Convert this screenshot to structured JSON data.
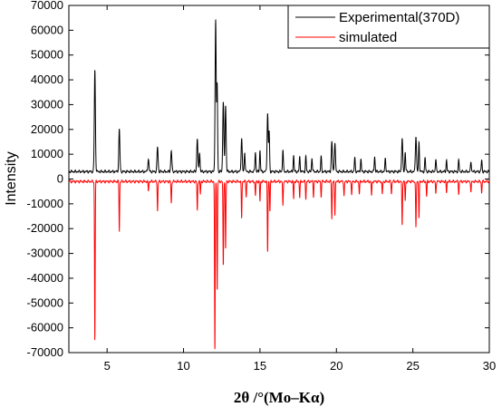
{
  "chart_data": {
    "type": "line",
    "xlabel": "2θ /°(Mo–Kα)",
    "ylabel": "Intensity",
    "xlim": [
      2.5,
      30
    ],
    "ylim": [
      -70000,
      70000
    ],
    "x_ticks": [
      5,
      10,
      15,
      20,
      25,
      30
    ],
    "y_ticks": [
      70000,
      60000,
      50000,
      40000,
      30000,
      20000,
      10000,
      0,
      -10000,
      -20000,
      -30000,
      -40000,
      -50000,
      -60000,
      -70000
    ],
    "legend_position": "top-right",
    "series": [
      {
        "name": "Experimental(370D)",
        "color": "#000000",
        "baseline": 3000,
        "peaks": [
          [
            4.2,
            41000,
            0.05
          ],
          [
            5.8,
            17000,
            0.05
          ],
          [
            7.7,
            5000,
            0.05
          ],
          [
            8.3,
            10000,
            0.05
          ],
          [
            9.2,
            8500,
            0.05
          ],
          [
            10.9,
            13500,
            0.05
          ],
          [
            11.05,
            8000,
            0.04
          ],
          [
            12.1,
            61500,
            0.05
          ],
          [
            12.2,
            35000,
            0.04
          ],
          [
            12.6,
            28500,
            0.05
          ],
          [
            12.75,
            27000,
            0.05
          ],
          [
            13.8,
            13500,
            0.05
          ],
          [
            14.0,
            8000,
            0.04
          ],
          [
            14.7,
            8000,
            0.04
          ],
          [
            15.0,
            8500,
            0.04
          ],
          [
            15.5,
            23500,
            0.05
          ],
          [
            15.6,
            16000,
            0.04
          ],
          [
            16.5,
            9000,
            0.04
          ],
          [
            17.2,
            6500,
            0.04
          ],
          [
            17.6,
            6000,
            0.04
          ],
          [
            18.0,
            6000,
            0.04
          ],
          [
            18.4,
            5500,
            0.04
          ],
          [
            19.0,
            6000,
            0.04
          ],
          [
            19.7,
            12000,
            0.05
          ],
          [
            19.9,
            11500,
            0.05
          ],
          [
            21.2,
            5500,
            0.04
          ],
          [
            21.6,
            5000,
            0.04
          ],
          [
            22.5,
            6000,
            0.04
          ],
          [
            23.2,
            5500,
            0.04
          ],
          [
            24.3,
            13500,
            0.05
          ],
          [
            24.5,
            8000,
            0.04
          ],
          [
            25.2,
            14500,
            0.05
          ],
          [
            25.4,
            12000,
            0.04
          ],
          [
            25.8,
            5500,
            0.04
          ],
          [
            26.5,
            5000,
            0.04
          ],
          [
            27.2,
            4500,
            0.04
          ],
          [
            28.0,
            4500,
            0.04
          ],
          [
            28.8,
            4000,
            0.04
          ],
          [
            29.5,
            4500,
            0.04
          ]
        ]
      },
      {
        "name": "simulated",
        "color": "#ff0000",
        "baseline": -1000,
        "peaks": [
          [
            4.2,
            -65000,
            0.03
          ],
          [
            5.8,
            -20000,
            0.03
          ],
          [
            7.7,
            -4000,
            0.03
          ],
          [
            8.3,
            -12000,
            0.03
          ],
          [
            9.2,
            -9000,
            0.03
          ],
          [
            10.9,
            -12000,
            0.03
          ],
          [
            11.1,
            -5000,
            0.03
          ],
          [
            12.05,
            -70000,
            0.03
          ],
          [
            12.2,
            -45000,
            0.03
          ],
          [
            12.6,
            -35000,
            0.03
          ],
          [
            12.75,
            -28000,
            0.03
          ],
          [
            13.8,
            -15000,
            0.03
          ],
          [
            14.1,
            -6000,
            0.03
          ],
          [
            14.7,
            -6000,
            0.03
          ],
          [
            15.0,
            -8000,
            0.03
          ],
          [
            15.5,
            -29000,
            0.03
          ],
          [
            15.65,
            -12000,
            0.03
          ],
          [
            16.5,
            -10000,
            0.03
          ],
          [
            17.2,
            -7000,
            0.03
          ],
          [
            17.6,
            -6500,
            0.03
          ],
          [
            18.0,
            -7000,
            0.03
          ],
          [
            18.5,
            -6000,
            0.03
          ],
          [
            19.0,
            -6000,
            0.03
          ],
          [
            19.7,
            -15000,
            0.03
          ],
          [
            19.9,
            -14000,
            0.03
          ],
          [
            20.5,
            -6000,
            0.03
          ],
          [
            21.0,
            -5500,
            0.03
          ],
          [
            21.5,
            -5000,
            0.03
          ],
          [
            22.3,
            -6000,
            0.03
          ],
          [
            23.0,
            -5500,
            0.03
          ],
          [
            23.6,
            -5000,
            0.03
          ],
          [
            24.3,
            -18000,
            0.03
          ],
          [
            24.5,
            -8000,
            0.03
          ],
          [
            25.2,
            -19000,
            0.03
          ],
          [
            25.4,
            -15000,
            0.03
          ],
          [
            25.9,
            -6000,
            0.03
          ],
          [
            26.5,
            -5000,
            0.03
          ],
          [
            27.2,
            -4500,
            0.03
          ],
          [
            28.0,
            -5000,
            0.03
          ],
          [
            28.8,
            -4500,
            0.03
          ],
          [
            29.5,
            -4500,
            0.03
          ]
        ]
      }
    ]
  }
}
